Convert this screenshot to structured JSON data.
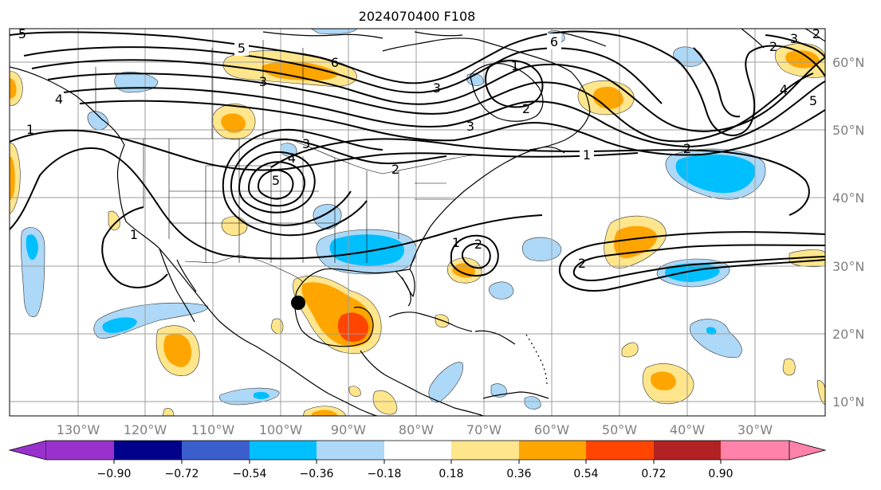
{
  "title": "2024070400 F108",
  "longitude_labels": [
    "130°W",
    "120°W",
    "110°W",
    "100°W",
    "90°W",
    "80°W",
    "70°W",
    "60°W",
    "50°W",
    "40°W",
    "30°W"
  ],
  "latitude_labels": [
    "60°N",
    "50°N",
    "40°N",
    "30°N",
    "20°N",
    "10°N"
  ],
  "colorbar": {
    "tick_labels": [
      "−0.90",
      "−0.72",
      "−0.54",
      "−0.36",
      "−0.18",
      "0.18",
      "0.36",
      "0.54",
      "0.72",
      "0.90"
    ],
    "colors": [
      "#9932cc",
      "#00008b",
      "#3a5fcd",
      "#00bfff",
      "#add8f7",
      "#ffffff",
      "#ffe68c",
      "#ffa500",
      "#ff4500",
      "#b22222",
      "#ff82ab"
    ]
  },
  "contour_labels": [
    "5",
    "6",
    "6",
    "5",
    "4",
    "3",
    "2",
    "1",
    "1",
    "2",
    "3",
    "4",
    "5",
    "1",
    "2",
    "3",
    "3",
    "2",
    "1",
    "2",
    "3",
    "4",
    "5",
    "1",
    "2",
    "2"
  ],
  "marker": {
    "name": "storm-position",
    "lon": -97.5,
    "lat": 24.5
  },
  "colors": {
    "contour": "#000000",
    "coast": "#000000",
    "grid": "#9e9e9e"
  }
}
